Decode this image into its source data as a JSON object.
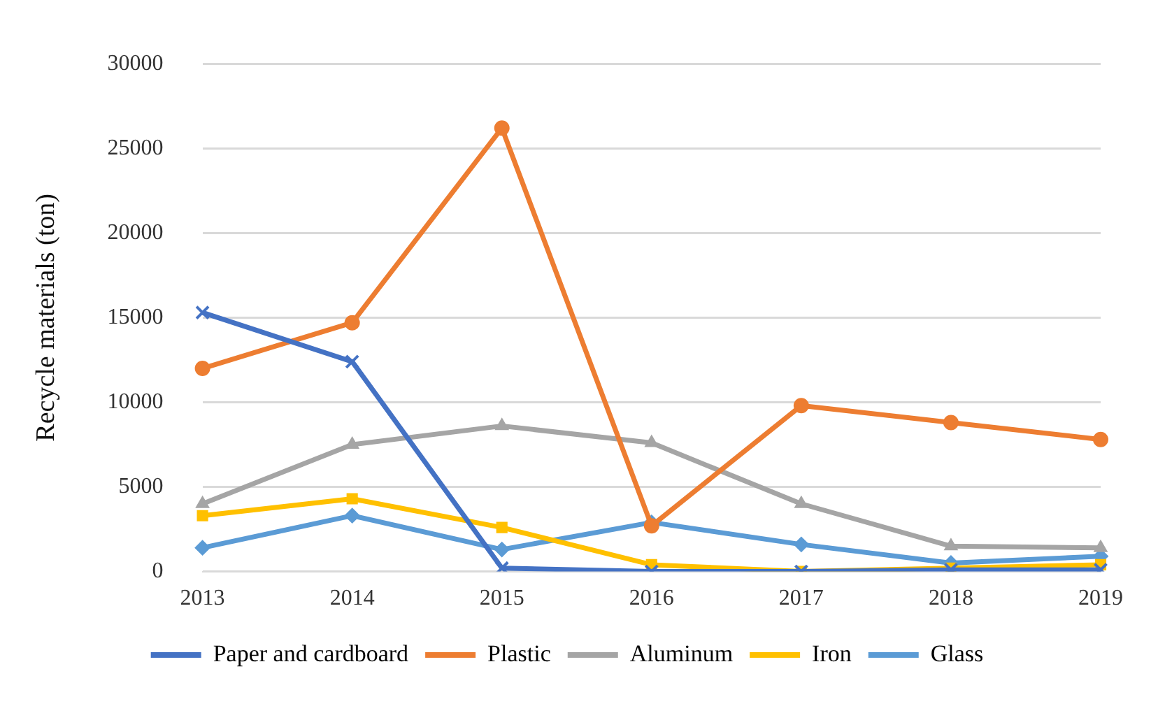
{
  "chart_data": {
    "type": "line",
    "ylabel": "Recycle materials (ton)",
    "categories": [
      "2013",
      "2014",
      "2015",
      "2016",
      "2017",
      "2018",
      "2019"
    ],
    "series": [
      {
        "name": "Paper and cardboard",
        "color": "#4472c4",
        "marker": "cross",
        "values": [
          15300,
          12400,
          200,
          0,
          0,
          100,
          100
        ]
      },
      {
        "name": "Plastic",
        "color": "#ed7d31",
        "marker": "circle",
        "values": [
          12000,
          14700,
          26200,
          2700,
          9800,
          8800,
          7800
        ]
      },
      {
        "name": "Aluminum",
        "color": "#a5a5a5",
        "marker": "triangle",
        "values": [
          4000,
          7500,
          8600,
          7600,
          4000,
          1500,
          1400
        ]
      },
      {
        "name": "Iron",
        "color": "#ffc000",
        "marker": "square",
        "values": [
          3300,
          4300,
          2600,
          400,
          0,
          200,
          400
        ]
      },
      {
        "name": "Glass",
        "color": "#5b9bd5",
        "marker": "diamond",
        "values": [
          1400,
          3300,
          1300,
          2900,
          1600,
          500,
          900
        ]
      }
    ],
    "ylim": [
      0,
      30000
    ],
    "yticks": [
      0,
      5000,
      10000,
      15000,
      20000,
      25000,
      30000
    ],
    "grid": "y",
    "legend": "bottom"
  }
}
